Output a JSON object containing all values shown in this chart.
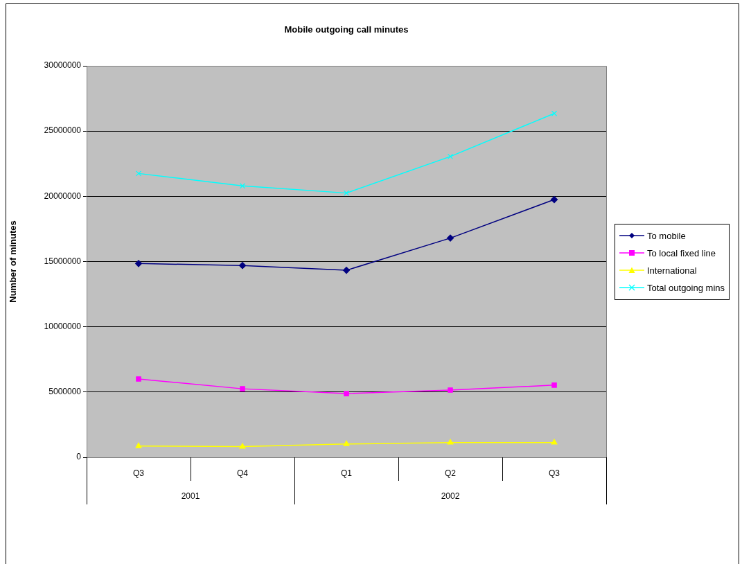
{
  "chart_data": {
    "type": "line",
    "title": "Mobile outgoing call minutes",
    "ylabel": "Number of minutes",
    "categories": [
      "Q3",
      "Q4",
      "Q1",
      "Q2",
      "Q3"
    ],
    "series": [
      {
        "name": "To mobile",
        "color": "#000080",
        "marker": "diamond",
        "values": [
          14850000,
          14700000,
          14330000,
          16800000,
          19750000
        ]
      },
      {
        "name": "To local fixed line",
        "color": "#ff00ff",
        "marker": "square",
        "values": [
          6000000,
          5250000,
          4880000,
          5150000,
          5530000
        ]
      },
      {
        "name": "International",
        "color": "#ffff00",
        "marker": "triangle",
        "values": [
          860000,
          820000,
          1020000,
          1130000,
          1130000
        ]
      },
      {
        "name": "Total outgoing mins",
        "color": "#00ffff",
        "marker": "cross",
        "values": [
          21750000,
          20800000,
          20250000,
          23050000,
          26350000
        ]
      }
    ],
    "annotations": [
      "2001",
      "2002"
    ],
    "ylim": [
      0,
      30000000
    ],
    "yticks": [
      0,
      5000000,
      10000000,
      15000000,
      20000000,
      25000000,
      30000000
    ],
    "grid": "y",
    "legend": "right"
  }
}
